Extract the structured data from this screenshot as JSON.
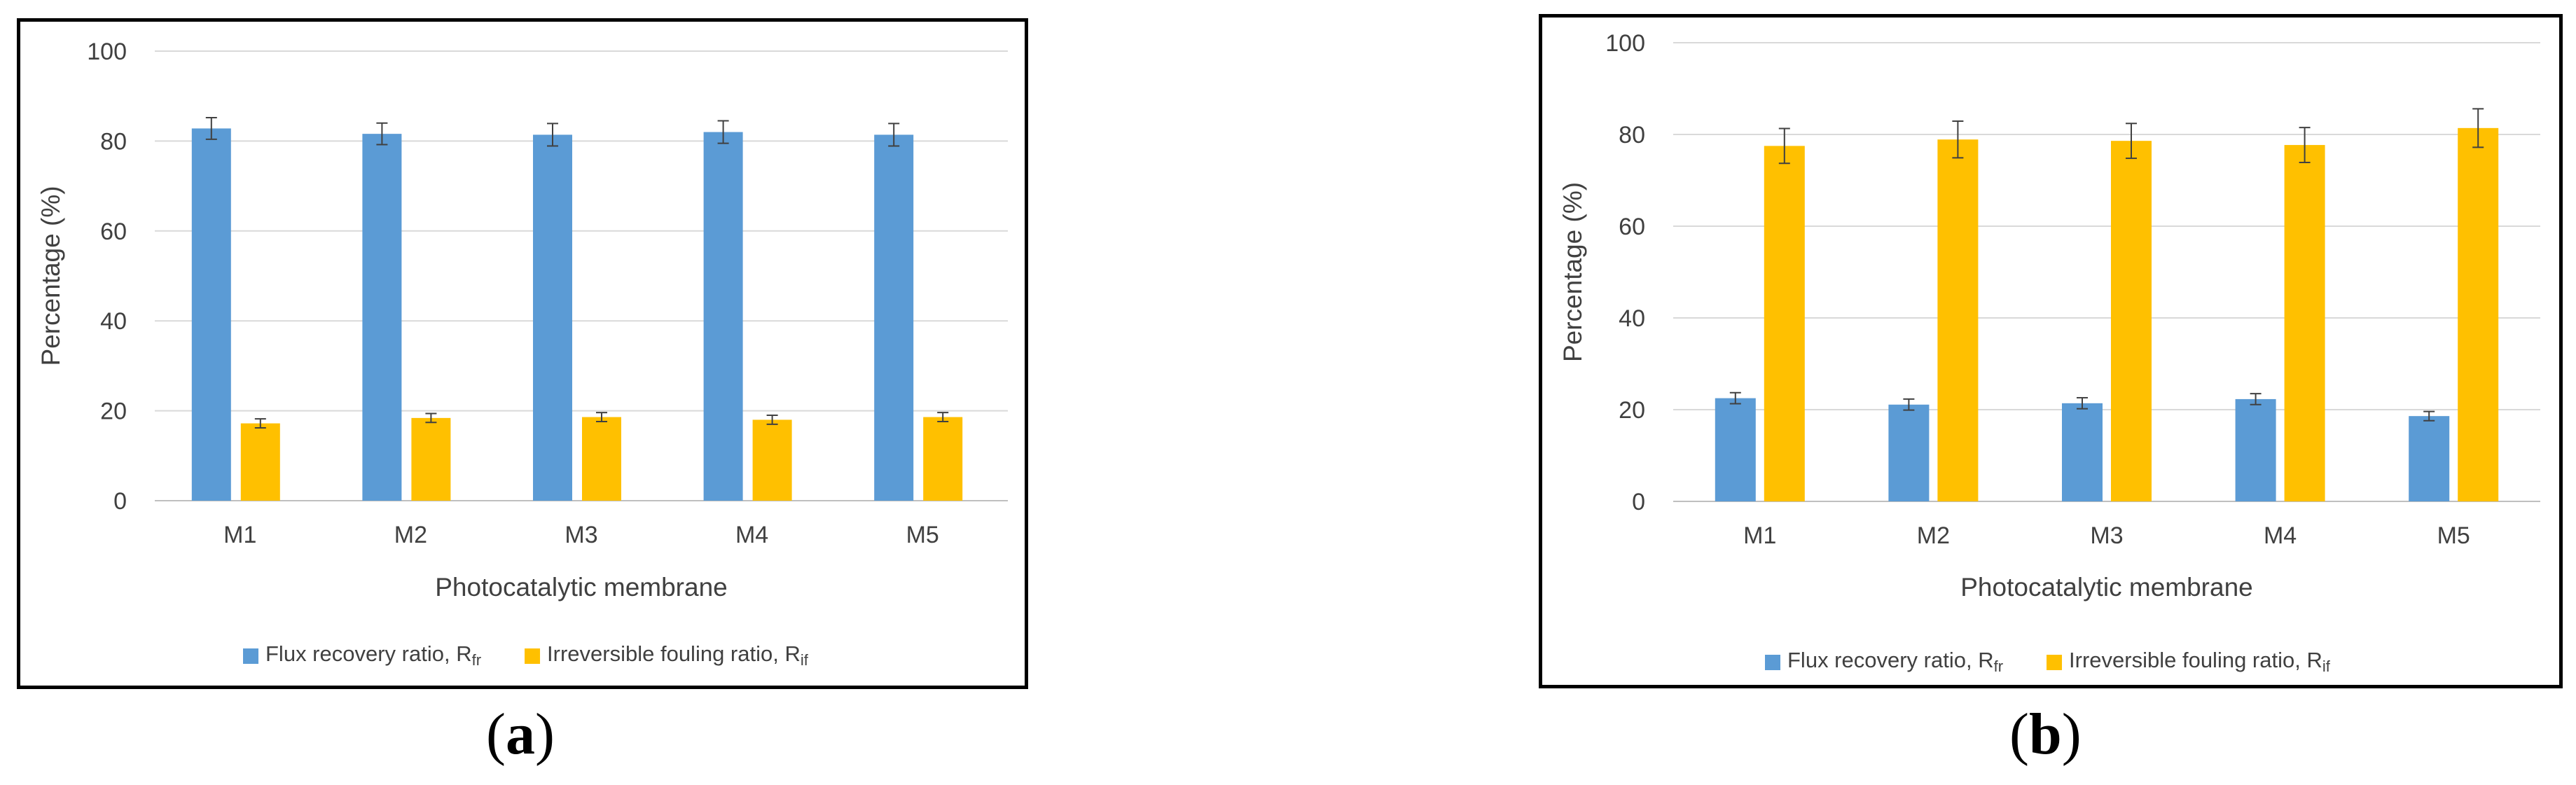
{
  "chart_data": [
    {
      "type": "bar",
      "panel_label": "a",
      "title": "",
      "xlabel": "Photocatalytic membrane",
      "ylabel": "Percentage (%)",
      "ylim": [
        0,
        100
      ],
      "yticks": [
        0,
        20,
        40,
        60,
        80,
        100
      ],
      "grid": true,
      "legend_position": "bottom",
      "categories": [
        "M1",
        "M2",
        "M3",
        "M4",
        "M5"
      ],
      "series": [
        {
          "name": "Flux recovery ratio, R",
          "sub": "fr",
          "color": "#5b9bd5",
          "values": [
            82.8,
            81.6,
            81.4,
            82.0,
            81.4
          ],
          "errors": [
            2.4,
            2.4,
            2.5,
            2.5,
            2.5
          ]
        },
        {
          "name": "Irreversible fouling ratio, R",
          "sub": "if",
          "color": "#ffc000",
          "values": [
            17.2,
            18.4,
            18.6,
            18.0,
            18.6
          ],
          "errors": [
            1.0,
            1.0,
            1.0,
            1.0,
            1.0
          ]
        }
      ]
    },
    {
      "type": "bar",
      "panel_label": "b",
      "title": "",
      "xlabel": "Photocatalytic membrane",
      "ylabel": "Percentage (%)",
      "ylim": [
        0,
        100
      ],
      "yticks": [
        0,
        20,
        40,
        60,
        80,
        100
      ],
      "grid": true,
      "legend_position": "bottom",
      "categories": [
        "M1",
        "M2",
        "M3",
        "M4",
        "M5"
      ],
      "series": [
        {
          "name": "Flux recovery ratio, R",
          "sub": "fr",
          "color": "#5b9bd5",
          "values": [
            22.5,
            21.1,
            21.4,
            22.3,
            18.6
          ],
          "errors": [
            1.2,
            1.2,
            1.2,
            1.2,
            1.0
          ]
        },
        {
          "name": "Irreversible fouling ratio, R",
          "sub": "if",
          "color": "#ffc000",
          "values": [
            77.5,
            78.9,
            78.6,
            77.7,
            81.4
          ],
          "errors": [
            3.8,
            4.0,
            3.8,
            3.8,
            4.2
          ]
        }
      ]
    }
  ],
  "captions": [
    {
      "open": "(",
      "label": "a",
      "close": ")"
    },
    {
      "open": "(",
      "label": "b",
      "close": ")"
    }
  ]
}
